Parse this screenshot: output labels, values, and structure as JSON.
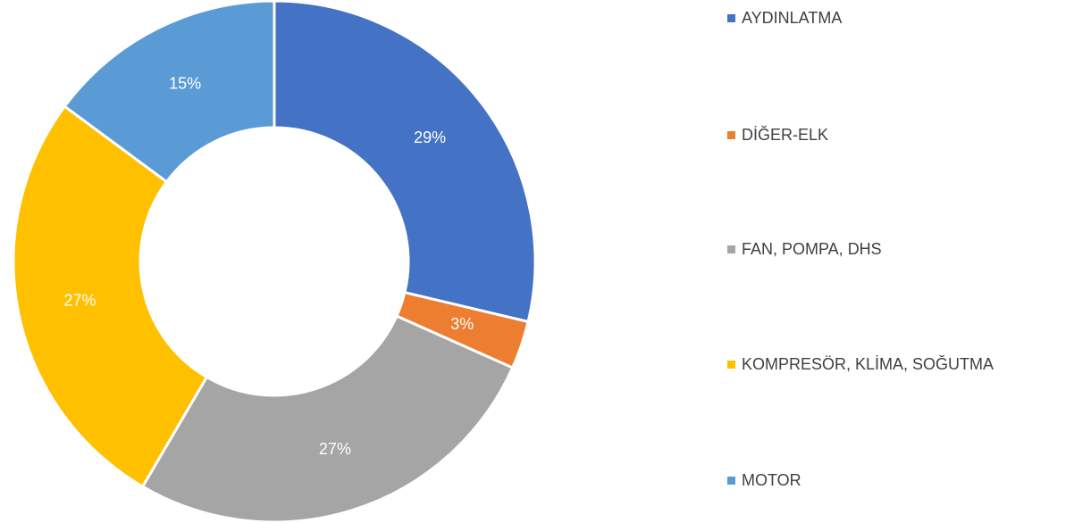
{
  "chart_data": {
    "type": "donut",
    "categories": [
      "AYDINLATMA",
      "DİĞER-ELK",
      "FAN, POMPA, DHS",
      "KOMPRESÖR, KLİMA, SOĞUTMA",
      "MOTOR"
    ],
    "values": [
      29,
      3,
      27,
      27,
      15
    ],
    "value_labels": [
      "29%",
      "3%",
      "27%",
      "27%",
      "15%"
    ],
    "colors": [
      "#4472c4",
      "#ed7d31",
      "#a5a5a5",
      "#ffc000",
      "#5b9bd5"
    ]
  }
}
